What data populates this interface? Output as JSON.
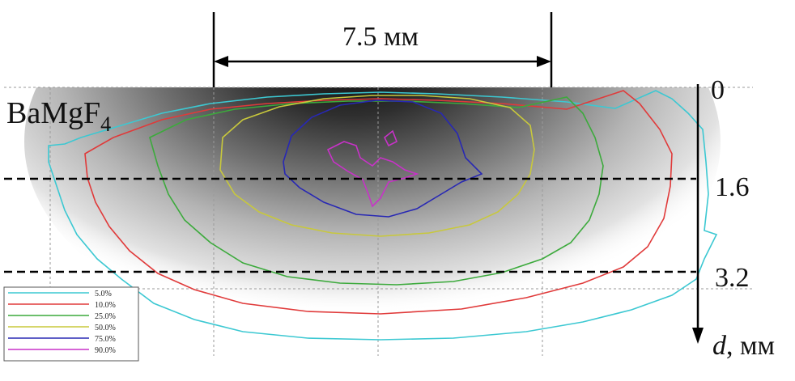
{
  "figure": {
    "material_main": "BaMgF",
    "material_sub": "4",
    "width_label": "7.5 мм",
    "depth_ticks": [
      "0",
      "1.6",
      "3.2"
    ],
    "axis_label_var": "d",
    "axis_label_unit": ", мм"
  },
  "legend": {
    "items": [
      {
        "label": "5.0%",
        "color": "#3cc8d2"
      },
      {
        "label": "10.0%",
        "color": "#e03a3a"
      },
      {
        "label": "25.0%",
        "color": "#3caa3c"
      },
      {
        "label": "50.0%",
        "color": "#c8c83c"
      },
      {
        "label": "75.0%",
        "color": "#2828b4"
      },
      {
        "label": "90.0%",
        "color": "#c832c8"
      }
    ]
  },
  "colors": {
    "guide_dash": "#000000",
    "grid_dots": "#9a9a9a"
  }
}
